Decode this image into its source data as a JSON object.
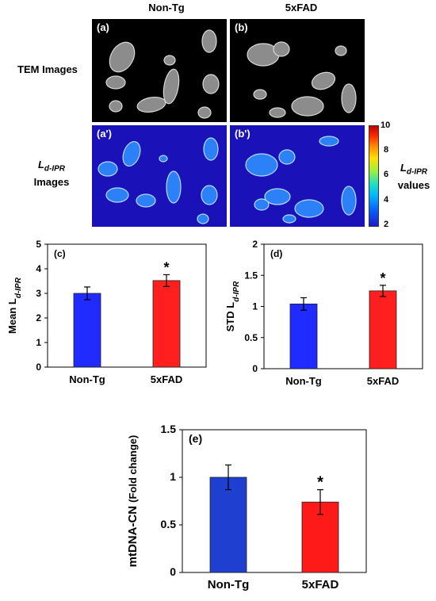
{
  "figure": {
    "col_headers": [
      "Non-Tg",
      "5xFAD"
    ],
    "row_labels": {
      "tem": "TEM Images",
      "ipr_main": "L",
      "ipr_sub": "d-IPR",
      "ipr_line2": "Images"
    },
    "panel_labels": {
      "a": "(a)",
      "b": "(b)",
      "a2": "(a')",
      "b2": "(b')"
    },
    "colorbar": {
      "title_main": "L",
      "title_sub": "d-IPR",
      "title_line2": "values",
      "ticks": [
        "10",
        "8",
        "6",
        "4",
        "2"
      ],
      "range": [
        2,
        10
      ]
    }
  },
  "chart_data": [
    {
      "type": "bar",
      "panel_label": "(c)",
      "categories": [
        "Non-Tg",
        "5xFAD"
      ],
      "values": [
        3.0,
        3.52
      ],
      "errors": [
        0.26,
        0.24
      ],
      "significance": [
        "",
        "*"
      ],
      "colors": [
        "#1f2bff",
        "#ff1f1f"
      ],
      "ylabel_main": "Mean L",
      "ylabel_sub": "d-IPR",
      "ylim": [
        0,
        5
      ],
      "yticks": [
        0,
        1,
        2,
        3,
        4,
        5
      ],
      "ytick_labels": [
        "0",
        "1",
        "2",
        "3",
        "4",
        "5"
      ]
    },
    {
      "type": "bar",
      "panel_label": "(d)",
      "categories": [
        "Non-Tg",
        "5xFAD"
      ],
      "values": [
        1.04,
        1.25
      ],
      "errors": [
        0.1,
        0.09
      ],
      "significance": [
        "",
        "*"
      ],
      "colors": [
        "#1f2bff",
        "#ff1f1f"
      ],
      "ylabel_main": "STD  L",
      "ylabel_sub": "d-IPR",
      "ylim": [
        0,
        2
      ],
      "yticks": [
        0,
        0.5,
        1,
        1.5,
        2
      ],
      "ytick_labels": [
        "0",
        "0.5",
        "1",
        "1.5",
        "2"
      ]
    },
    {
      "type": "bar",
      "panel_label": "(e)",
      "categories": [
        "Non-Tg",
        "5xFAD"
      ],
      "values": [
        1.0,
        0.74
      ],
      "errors": [
        0.13,
        0.13
      ],
      "significance": [
        "",
        "*"
      ],
      "colors": [
        "#1f3fd0",
        "#ff1a1a"
      ],
      "ylabel_main": "mtDNA-CN",
      "ylabel_sub": "(Fold change)",
      "ylim": [
        0,
        1.5
      ],
      "yticks": [
        0,
        0.5,
        1,
        1.5
      ],
      "ytick_labels": [
        "0",
        "0.5",
        "1",
        "1.5"
      ]
    }
  ]
}
